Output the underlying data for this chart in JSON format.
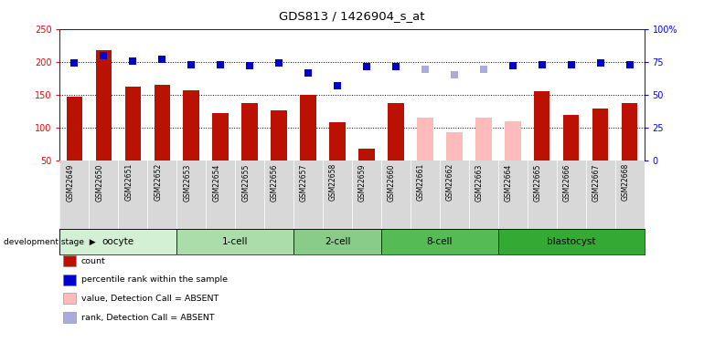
{
  "title": "GDS813 / 1426904_s_at",
  "samples": [
    "GSM22649",
    "GSM22650",
    "GSM22651",
    "GSM22652",
    "GSM22653",
    "GSM22654",
    "GSM22655",
    "GSM22656",
    "GSM22657",
    "GSM22658",
    "GSM22659",
    "GSM22660",
    "GSM22661",
    "GSM22662",
    "GSM22663",
    "GSM22664",
    "GSM22665",
    "GSM22666",
    "GSM22667",
    "GSM22668"
  ],
  "count_values": [
    148,
    218,
    163,
    166,
    157,
    122,
    137,
    126,
    150,
    108,
    69,
    138,
    116,
    93,
    115,
    110,
    155,
    120,
    130,
    138
  ],
  "count_absent": [
    false,
    false,
    false,
    false,
    false,
    false,
    false,
    false,
    false,
    false,
    false,
    false,
    true,
    true,
    true,
    true,
    false,
    false,
    false,
    false
  ],
  "percentile_values": [
    199,
    210,
    202,
    204,
    196,
    196,
    195,
    199,
    183,
    164,
    193,
    193,
    189,
    181,
    189,
    195,
    196,
    196,
    198,
    196
  ],
  "percentile_absent": [
    false,
    false,
    false,
    false,
    false,
    false,
    false,
    false,
    false,
    false,
    false,
    false,
    true,
    true,
    true,
    false,
    false,
    false,
    false,
    false
  ],
  "groups": [
    {
      "name": "oocyte",
      "start": 0,
      "end": 4,
      "color": "#d4f0d4"
    },
    {
      "name": "1-cell",
      "start": 4,
      "end": 8,
      "color": "#aaddaa"
    },
    {
      "name": "2-cell",
      "start": 8,
      "end": 11,
      "color": "#88cc88"
    },
    {
      "name": "8-cell",
      "start": 11,
      "end": 15,
      "color": "#55bb55"
    },
    {
      "name": "blastocyst",
      "start": 15,
      "end": 20,
      "color": "#33aa33"
    }
  ],
  "ylim_left": [
    50,
    250
  ],
  "bar_color_present": "#bb1100",
  "bar_color_absent": "#ffbbbb",
  "dot_color_present": "#0000cc",
  "dot_color_absent": "#aaaadd",
  "legend_items": [
    {
      "label": "count",
      "color": "#bb1100",
      "marker": "s"
    },
    {
      "label": "percentile rank within the sample",
      "color": "#0000cc",
      "marker": "s"
    },
    {
      "label": "value, Detection Call = ABSENT",
      "color": "#ffbbbb",
      "marker": "s"
    },
    {
      "label": "rank, Detection Call = ABSENT",
      "color": "#aaaadd",
      "marker": "s"
    }
  ]
}
